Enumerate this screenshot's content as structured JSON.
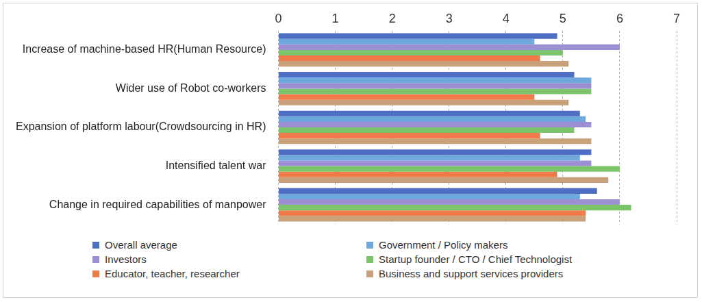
{
  "chart_data": {
    "type": "bar",
    "orientation": "horizontal",
    "categories": [
      "Increase of machine-based HR(Human Resource)",
      "Wider use of Robot co-workers",
      "Expansion of platform labour(Crowdsourcing in HR)",
      "Intensified talent war",
      "Change in required capabilities of manpower"
    ],
    "series": [
      {
        "name": "Overall average",
        "color": "#4f6fc4",
        "values": [
          4.9,
          5.2,
          5.3,
          5.5,
          5.6
        ]
      },
      {
        "name": "Government / Policy makers",
        "color": "#6fa8dc",
        "values": [
          4.5,
          5.5,
          5.4,
          5.3,
          5.3
        ]
      },
      {
        "name": "Investors",
        "color": "#9c8fd4",
        "values": [
          6.0,
          5.5,
          5.5,
          5.5,
          6.0
        ]
      },
      {
        "name": "Startup founder / CTO / Chief Technologist",
        "color": "#7cc46a",
        "values": [
          5.0,
          5.5,
          5.2,
          6.0,
          6.2
        ]
      },
      {
        "name": "Educator, teacher, researcher",
        "color": "#f07a4a",
        "values": [
          4.6,
          4.5,
          4.6,
          4.9,
          5.4
        ]
      },
      {
        "name": "Business and support services providers",
        "color": "#c8a07a",
        "values": [
          5.1,
          5.1,
          5.5,
          5.8,
          5.4
        ]
      }
    ],
    "xlim": [
      0,
      7
    ],
    "xticks": [
      0,
      1,
      2,
      3,
      4,
      5,
      6,
      7
    ],
    "grid": true,
    "legend": "bottom"
  }
}
